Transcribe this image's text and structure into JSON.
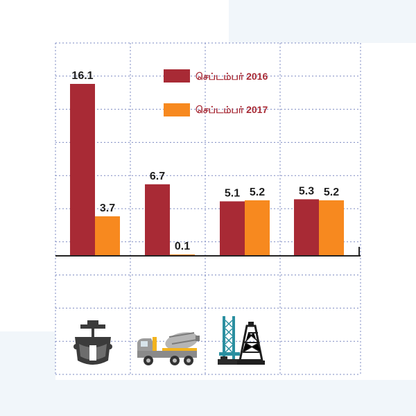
{
  "chart_data": {
    "type": "bar",
    "categories": [
      "",
      "",
      "",
      ""
    ],
    "category_icons": [
      "steel-ladle-icon",
      "cement-mixer-truck-icon",
      "oil-rig-refinery-icon",
      "oil-derrick-icon"
    ],
    "series": [
      {
        "name": "செப்டம்பர் 2016",
        "values": [
          16.1,
          6.7,
          5.1,
          5.3
        ],
        "color": "#a82a35"
      },
      {
        "name": "செப்டம்பர் 2017",
        "values": [
          3.7,
          0.1,
          5.2,
          5.2
        ],
        "color": "#f7891f"
      }
    ],
    "value_labels": [
      [
        "16.1",
        "6.7",
        "5.1",
        "5.3"
      ],
      [
        "3.7",
        "0.1",
        "5.2",
        "5.2"
      ]
    ],
    "title": "",
    "xlabel": "",
    "ylabel": "",
    "ylim": [
      0,
      16.1
    ],
    "grid": true,
    "legend_position": "top-center"
  }
}
